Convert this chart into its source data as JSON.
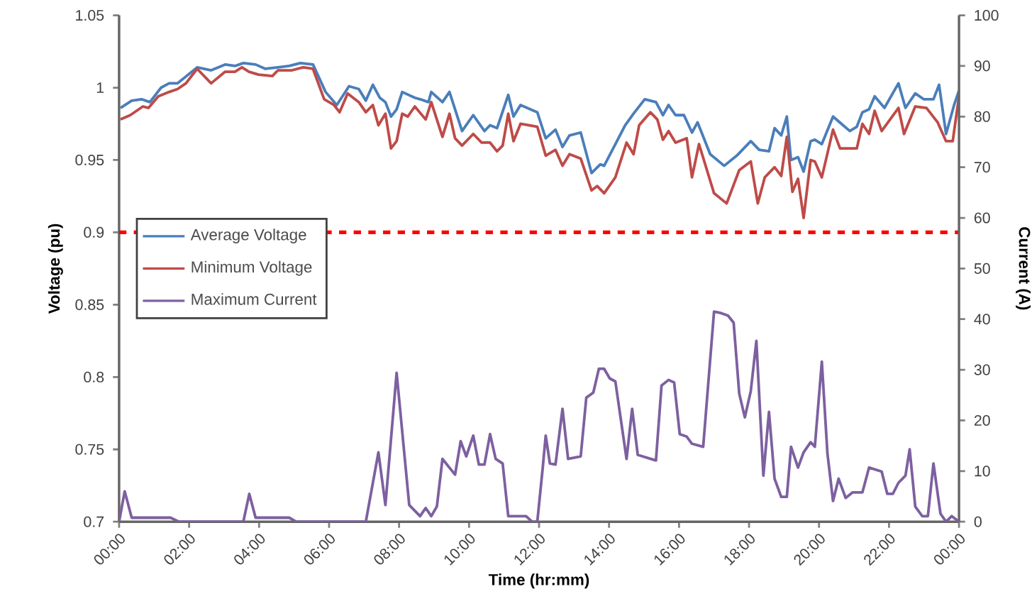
{
  "chart_data": {
    "type": "line",
    "xlabel": "Time (hr:mm)",
    "ylabel": "Voltage (pu)",
    "y2label": "Current (A)",
    "xlim": [
      0,
      24
    ],
    "xticks": [
      {
        "value": 0,
        "label": "00:00"
      },
      {
        "value": 2,
        "label": "02:00"
      },
      {
        "value": 4,
        "label": "04:00"
      },
      {
        "value": 6,
        "label": "06:00"
      },
      {
        "value": 8,
        "label": "08:00"
      },
      {
        "value": 10,
        "label": "10:00"
      },
      {
        "value": 12,
        "label": "12:00"
      },
      {
        "value": 14,
        "label": "14:00"
      },
      {
        "value": 16,
        "label": "16:00"
      },
      {
        "value": 18,
        "label": "18:00"
      },
      {
        "value": 20,
        "label": "20:00"
      },
      {
        "value": 22,
        "label": "22:00"
      },
      {
        "value": 24,
        "label": "00:00"
      }
    ],
    "ylim": [
      0.7,
      1.05
    ],
    "yticks": [
      0.7,
      0.75,
      0.8,
      0.85,
      0.9,
      0.95,
      1,
      1.05
    ],
    "y2lim": [
      0,
      100
    ],
    "y2ticks": [
      0,
      10,
      20,
      30,
      40,
      50,
      60,
      70,
      80,
      90,
      100
    ],
    "legend": "left",
    "grid": false,
    "ref_lines": [
      {
        "axis": "y",
        "value": 0.9,
        "color": "#ff0000",
        "line_style": "dashed"
      }
    ],
    "series": [
      {
        "name": "Average Voltage",
        "color": "#4a7ebb",
        "x": [
          0.04,
          0.36,
          0.64,
          0.88,
          1.2,
          1.43,
          1.67,
          2.23,
          2.63,
          3.03,
          3.31,
          3.55,
          3.9,
          4.18,
          4.54,
          4.86,
          5.18,
          5.54,
          5.9,
          6.22,
          6.57,
          6.85,
          7.05,
          7.25,
          7.45,
          7.61,
          7.77,
          7.93,
          8.09,
          8.45,
          8.6,
          8.84,
          8.92,
          9.24,
          9.44,
          9.8,
          10.12,
          10.44,
          10.6,
          10.8,
          11.12,
          11.27,
          11.47,
          11.95,
          12.19,
          12.47,
          12.67,
          12.87,
          13.19,
          13.5,
          13.75,
          13.86,
          14.46,
          14.7,
          15.02,
          15.34,
          15.54,
          15.7,
          15.9,
          16.14,
          16.37,
          16.53,
          16.89,
          17.29,
          17.65,
          18.05,
          18.29,
          18.57,
          18.73,
          18.92,
          19.08,
          19.2,
          19.4,
          19.56,
          19.76,
          19.88,
          20.08,
          20.4,
          20.64,
          20.88,
          21.08,
          21.24,
          21.43,
          21.59,
          21.87,
          22.27,
          22.47,
          22.75,
          22.99,
          23.27,
          23.43,
          23.63,
          23.86,
          24
        ],
        "values": [
          0.986,
          0.991,
          0.992,
          0.99,
          1.0,
          1.003,
          1.003,
          1.014,
          1.012,
          1.016,
          1.015,
          1.017,
          1.016,
          1.013,
          1.014,
          1.015,
          1.017,
          1.016,
          0.997,
          0.988,
          1.001,
          0.999,
          0.991,
          1.002,
          0.993,
          0.99,
          0.98,
          0.985,
          0.997,
          0.993,
          0.992,
          0.99,
          0.997,
          0.99,
          0.997,
          0.97,
          0.981,
          0.97,
          0.974,
          0.972,
          0.995,
          0.98,
          0.988,
          0.983,
          0.965,
          0.971,
          0.959,
          0.967,
          0.969,
          0.941,
          0.947,
          0.946,
          0.974,
          0.982,
          0.992,
          0.99,
          0.981,
          0.988,
          0.981,
          0.981,
          0.969,
          0.976,
          0.954,
          0.946,
          0.953,
          0.963,
          0.957,
          0.956,
          0.972,
          0.967,
          0.98,
          0.95,
          0.952,
          0.942,
          0.963,
          0.964,
          0.961,
          0.98,
          0.975,
          0.97,
          0.973,
          0.983,
          0.985,
          0.994,
          0.986,
          1.003,
          0.986,
          0.996,
          0.992,
          0.992,
          1.002,
          0.968,
          0.988,
          0.998
        ]
      },
      {
        "name": "Minimum Voltage",
        "color": "#be4b48",
        "x": [
          0.04,
          0.32,
          0.68,
          0.84,
          1.12,
          1.43,
          1.67,
          1.91,
          2.23,
          2.63,
          3.03,
          3.31,
          3.51,
          3.71,
          3.98,
          4.38,
          4.54,
          4.94,
          5.26,
          5.54,
          5.86,
          6.14,
          6.3,
          6.53,
          6.85,
          7.05,
          7.25,
          7.41,
          7.61,
          7.77,
          7.93,
          8.09,
          8.25,
          8.45,
          8.76,
          8.92,
          9.24,
          9.44,
          9.6,
          9.8,
          10.12,
          10.36,
          10.6,
          10.8,
          10.96,
          11.12,
          11.27,
          11.47,
          11.95,
          12.19,
          12.47,
          12.67,
          12.87,
          13.19,
          13.5,
          13.66,
          13.86,
          14.18,
          14.5,
          14.7,
          14.86,
          15.18,
          15.38,
          15.54,
          15.7,
          15.9,
          16.22,
          16.37,
          16.57,
          17.0,
          17.36,
          17.72,
          18.05,
          18.25,
          18.45,
          18.73,
          18.92,
          19.08,
          19.24,
          19.4,
          19.56,
          19.76,
          19.88,
          20.08,
          20.4,
          20.6,
          21.08,
          21.24,
          21.43,
          21.59,
          21.79,
          22.27,
          22.43,
          22.75,
          23.07,
          23.39,
          23.63,
          23.82,
          24
        ],
        "values": [
          0.978,
          0.981,
          0.987,
          0.986,
          0.994,
          0.997,
          0.999,
          1.003,
          1.013,
          1.003,
          1.011,
          1.011,
          1.014,
          1.011,
          1.009,
          1.008,
          1.012,
          1.012,
          1.014,
          1.013,
          0.992,
          0.988,
          0.983,
          0.996,
          0.99,
          0.983,
          0.988,
          0.974,
          0.982,
          0.958,
          0.963,
          0.982,
          0.98,
          0.987,
          0.978,
          0.99,
          0.966,
          0.982,
          0.965,
          0.96,
          0.968,
          0.962,
          0.962,
          0.956,
          0.96,
          0.982,
          0.963,
          0.975,
          0.973,
          0.953,
          0.957,
          0.946,
          0.954,
          0.951,
          0.929,
          0.932,
          0.927,
          0.938,
          0.962,
          0.954,
          0.974,
          0.983,
          0.978,
          0.964,
          0.97,
          0.962,
          0.965,
          0.938,
          0.961,
          0.927,
          0.92,
          0.943,
          0.949,
          0.92,
          0.938,
          0.945,
          0.939,
          0.966,
          0.928,
          0.937,
          0.91,
          0.95,
          0.949,
          0.938,
          0.971,
          0.958,
          0.958,
          0.975,
          0.968,
          0.984,
          0.97,
          0.986,
          0.968,
          0.987,
          0.986,
          0.976,
          0.963,
          0.963,
          0.994
        ]
      },
      {
        "name": "Maximum Current",
        "color": "#7d60a0",
        "axis": "y2",
        "x": [
          0,
          0.16,
          0.36,
          1.47,
          1.71,
          3.55,
          3.72,
          3.9,
          4.86,
          5.06,
          7.05,
          7.41,
          7.61,
          7.93,
          8.29,
          8.6,
          8.76,
          8.92,
          9.08,
          9.24,
          9.6,
          9.76,
          9.92,
          10.12,
          10.28,
          10.44,
          10.6,
          10.76,
          10.96,
          11.12,
          11.63,
          11.8,
          11.95,
          12.11,
          12.19,
          12.31,
          12.47,
          12.67,
          12.83,
          13.19,
          13.35,
          13.55,
          13.71,
          13.86,
          14.02,
          14.18,
          14.5,
          14.66,
          14.82,
          15.34,
          15.5,
          15.7,
          15.86,
          16.02,
          16.22,
          16.37,
          16.69,
          17.0,
          17.2,
          17.4,
          17.56,
          17.72,
          17.88,
          18.05,
          18.21,
          18.41,
          18.57,
          18.73,
          18.92,
          19.08,
          19.2,
          19.4,
          19.56,
          19.76,
          19.88,
          20.08,
          20.24,
          20.4,
          20.56,
          20.76,
          20.96,
          21.24,
          21.43,
          21.79,
          21.95,
          22.11,
          22.27,
          22.47,
          22.59,
          22.75,
          22.95,
          23.11,
          23.27,
          23.47,
          23.63,
          23.79,
          24
        ],
        "values": [
          0,
          6.0,
          0.8,
          0.8,
          0,
          0,
          5.5,
          0.8,
          0.8,
          0,
          0,
          13.7,
          3.3,
          29.4,
          3.3,
          1.1,
          2.7,
          1.1,
          3.0,
          12.4,
          9.3,
          15.9,
          12.9,
          17.0,
          11.3,
          11.3,
          17.3,
          12.4,
          11.5,
          1.1,
          1.1,
          0,
          0,
          11.0,
          17.0,
          11.5,
          11.3,
          22.3,
          12.4,
          12.9,
          24.5,
          25.5,
          30.2,
          30.2,
          28.3,
          27.7,
          12.4,
          22.3,
          13.2,
          12.1,
          26.9,
          28.0,
          27.5,
          17.3,
          16.8,
          15.4,
          14.8,
          41.5,
          41.2,
          40.7,
          39.3,
          25.3,
          20.6,
          25.8,
          35.7,
          9.1,
          21.7,
          8.5,
          4.9,
          4.9,
          14.8,
          10.7,
          13.7,
          15.7,
          14.8,
          31.6,
          13.5,
          4.1,
          8.5,
          4.7,
          5.8,
          5.8,
          10.7,
          9.9,
          5.5,
          5.5,
          7.7,
          9.1,
          14.3,
          3.0,
          1.1,
          1.1,
          11.5,
          1.6,
          0,
          1.1,
          0
        ]
      }
    ]
  }
}
